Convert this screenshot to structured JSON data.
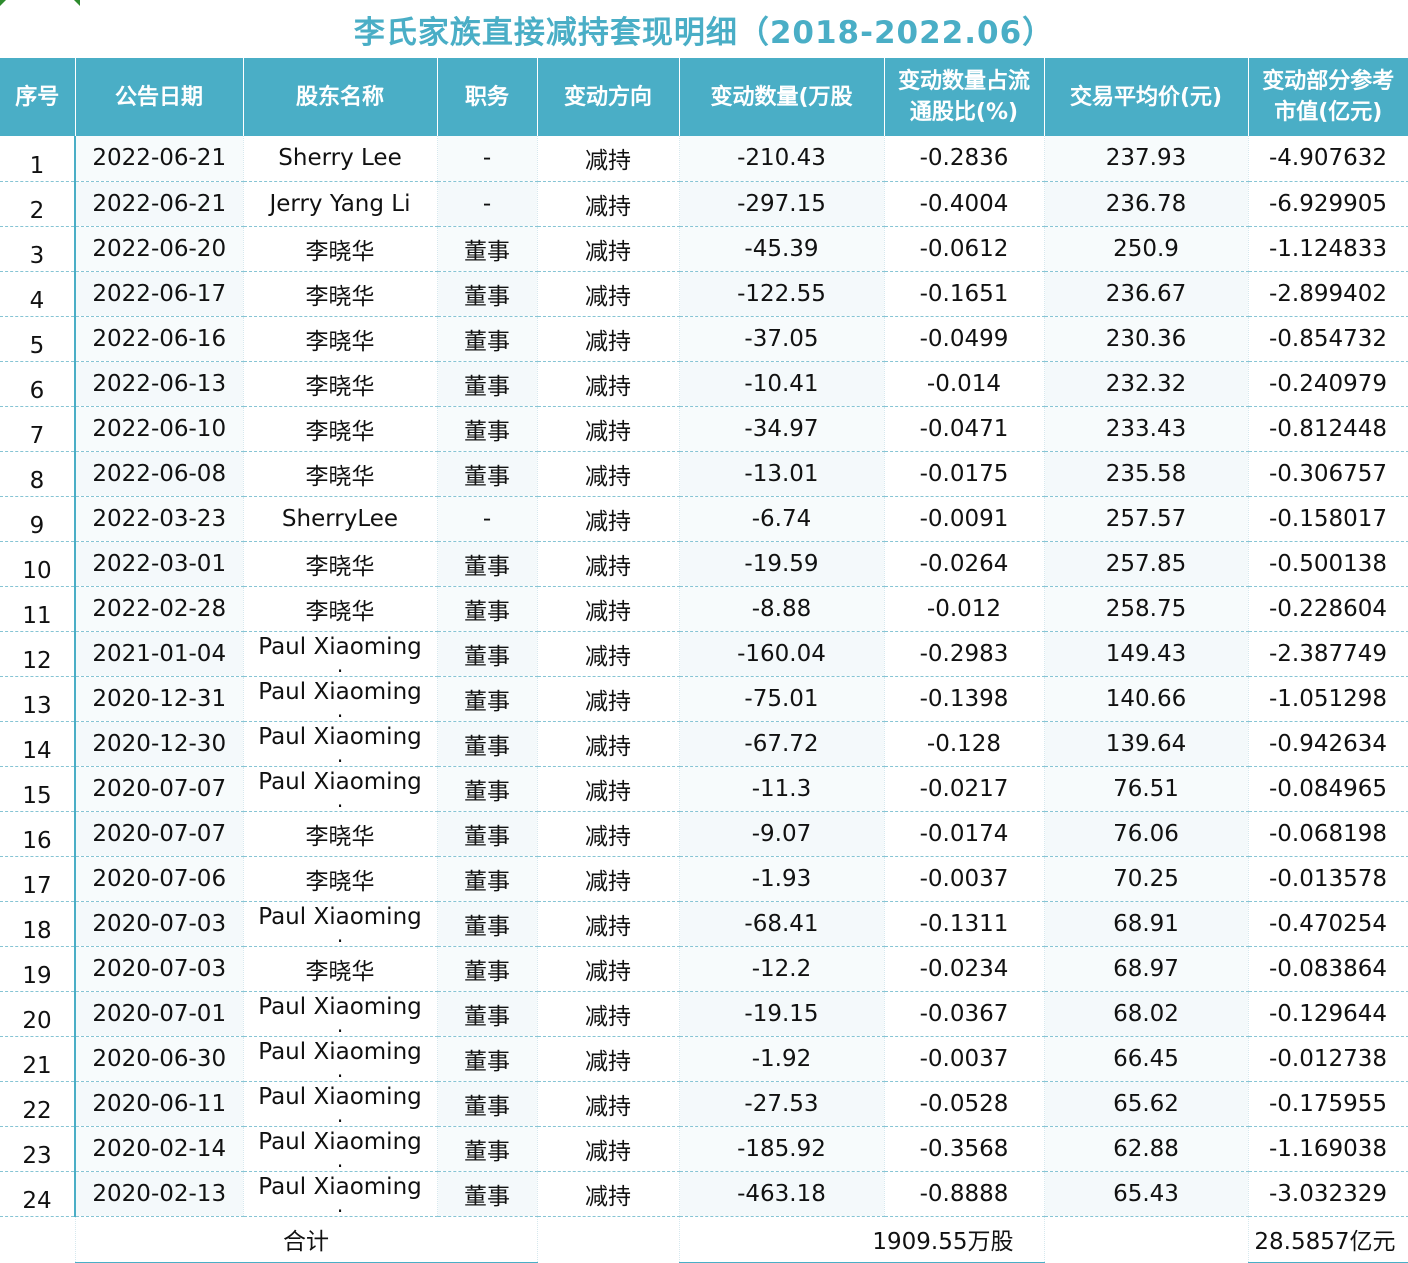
{
  "title": "李氏家族直接减持套现明细（2018-2022.06）",
  "headers": {
    "idx": "序号",
    "date": "公告日期",
    "name": "股东名称",
    "position": "职务",
    "direction": "变动方向",
    "qty": "变动数量(万股",
    "ratio_line1": "变动数量占流",
    "ratio_line2": "通股比(%)",
    "price": "交易平均价(元)",
    "value_line1": "变动部分参考",
    "value_line2": "市值(亿元)"
  },
  "rows": [
    {
      "idx": "1",
      "date": "2022-06-21",
      "name": "Sherry Lee",
      "position": "-",
      "direction": "减持",
      "qty": "-210.43",
      "ratio": "-0.2836",
      "price": "237.93",
      "value": "-4.907632"
    },
    {
      "idx": "2",
      "date": "2022-06-21",
      "name": "Jerry Yang Li",
      "position": "-",
      "direction": "减持",
      "qty": "-297.15",
      "ratio": "-0.4004",
      "price": "236.78",
      "value": "-6.929905"
    },
    {
      "idx": "3",
      "date": "2022-06-20",
      "name": "李晓华",
      "position": "董事",
      "direction": "减持",
      "qty": "-45.39",
      "ratio": "-0.0612",
      "price": "250.9",
      "value": "-1.124833"
    },
    {
      "idx": "4",
      "date": "2022-06-17",
      "name": "李晓华",
      "position": "董事",
      "direction": "减持",
      "qty": "-122.55",
      "ratio": "-0.1651",
      "price": "236.67",
      "value": "-2.899402"
    },
    {
      "idx": "5",
      "date": "2022-06-16",
      "name": "李晓华",
      "position": "董事",
      "direction": "减持",
      "qty": "-37.05",
      "ratio": "-0.0499",
      "price": "230.36",
      "value": "-0.854732"
    },
    {
      "idx": "6",
      "date": "2022-06-13",
      "name": "李晓华",
      "position": "董事",
      "direction": "减持",
      "qty": "-10.41",
      "ratio": "-0.014",
      "price": "232.32",
      "value": "-0.240979"
    },
    {
      "idx": "7",
      "date": "2022-06-10",
      "name": "李晓华",
      "position": "董事",
      "direction": "减持",
      "qty": "-34.97",
      "ratio": "-0.0471",
      "price": "233.43",
      "value": "-0.812448"
    },
    {
      "idx": "8",
      "date": "2022-06-08",
      "name": "李晓华",
      "position": "董事",
      "direction": "减持",
      "qty": "-13.01",
      "ratio": "-0.0175",
      "price": "235.58",
      "value": "-0.306757"
    },
    {
      "idx": "9",
      "date": "2022-03-23",
      "name": "SherryLee",
      "position": "-",
      "direction": "减持",
      "qty": "-6.74",
      "ratio": "-0.0091",
      "price": "257.57",
      "value": "-0.158017"
    },
    {
      "idx": "10",
      "date": "2022-03-01",
      "name": "李晓华",
      "position": "董事",
      "direction": "减持",
      "qty": "-19.59",
      "ratio": "-0.0264",
      "price": "257.85",
      "value": "-0.500138"
    },
    {
      "idx": "11",
      "date": "2022-02-28",
      "name": "李晓华",
      "position": "董事",
      "direction": "减持",
      "qty": "-8.88",
      "ratio": "-0.012",
      "price": "258.75",
      "value": "-0.228604"
    },
    {
      "idx": "12",
      "date": "2021-01-04",
      "name": "Paul Xiaoming",
      "position": "董事",
      "direction": "减持",
      "qty": "-160.04",
      "ratio": "-0.2983",
      "price": "149.43",
      "value": "-2.387749"
    },
    {
      "idx": "13",
      "date": "2020-12-31",
      "name": "Paul Xiaoming",
      "position": "董事",
      "direction": "减持",
      "qty": "-75.01",
      "ratio": "-0.1398",
      "price": "140.66",
      "value": "-1.051298"
    },
    {
      "idx": "14",
      "date": "2020-12-30",
      "name": "Paul Xiaoming",
      "position": "董事",
      "direction": "减持",
      "qty": "-67.72",
      "ratio": "-0.128",
      "price": "139.64",
      "value": "-0.942634"
    },
    {
      "idx": "15",
      "date": "2020-07-07",
      "name": "Paul Xiaoming",
      "position": "董事",
      "direction": "减持",
      "qty": "-11.3",
      "ratio": "-0.0217",
      "price": "76.51",
      "value": "-0.084965"
    },
    {
      "idx": "16",
      "date": "2020-07-07",
      "name": "李晓华",
      "position": "董事",
      "direction": "减持",
      "qty": "-9.07",
      "ratio": "-0.0174",
      "price": "76.06",
      "value": "-0.068198"
    },
    {
      "idx": "17",
      "date": "2020-07-06",
      "name": "李晓华",
      "position": "董事",
      "direction": "减持",
      "qty": "-1.93",
      "ratio": "-0.0037",
      "price": "70.25",
      "value": "-0.013578"
    },
    {
      "idx": "18",
      "date": "2020-07-03",
      "name": "Paul Xiaoming",
      "position": "董事",
      "direction": "减持",
      "qty": "-68.41",
      "ratio": "-0.1311",
      "price": "68.91",
      "value": "-0.470254"
    },
    {
      "idx": "19",
      "date": "2020-07-03",
      "name": "李晓华",
      "position": "董事",
      "direction": "减持",
      "qty": "-12.2",
      "ratio": "-0.0234",
      "price": "68.97",
      "value": "-0.083864"
    },
    {
      "idx": "20",
      "date": "2020-07-01",
      "name": "Paul Xiaoming",
      "position": "董事",
      "direction": "减持",
      "qty": "-19.15",
      "ratio": "-0.0367",
      "price": "68.02",
      "value": "-0.129644"
    },
    {
      "idx": "21",
      "date": "2020-06-30",
      "name": "Paul Xiaoming",
      "position": "董事",
      "direction": "减持",
      "qty": "-1.92",
      "ratio": "-0.0037",
      "price": "66.45",
      "value": "-0.012738"
    },
    {
      "idx": "22",
      "date": "2020-06-11",
      "name": "Paul Xiaoming",
      "position": "董事",
      "direction": "减持",
      "qty": "-27.53",
      "ratio": "-0.0528",
      "price": "65.62",
      "value": "-0.175955"
    },
    {
      "idx": "23",
      "date": "2020-02-14",
      "name": "Paul Xiaoming",
      "position": "董事",
      "direction": "减持",
      "qty": "-185.92",
      "ratio": "-0.3568",
      "price": "62.88",
      "value": "-1.169038"
    },
    {
      "idx": "24",
      "date": "2020-02-13",
      "name": "Paul Xiaoming",
      "position": "董事",
      "direction": "减持",
      "qty": "-463.18",
      "ratio": "-0.8888",
      "price": "65.43",
      "value": "-3.032329"
    }
  ],
  "total": {
    "label": "合计",
    "qty": "1909.55万股",
    "value": "28.5857亿元"
  },
  "colors": {
    "header_bg": "#4aaec6",
    "title": "#4aaec6",
    "index_border": "#4aaec6"
  }
}
